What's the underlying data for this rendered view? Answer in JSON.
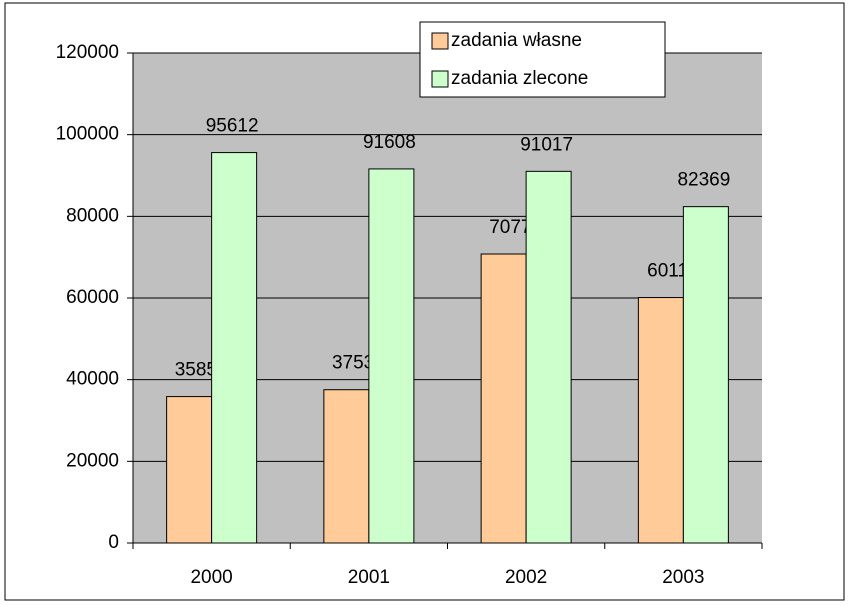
{
  "chart_data": {
    "type": "bar",
    "categories": [
      "2000",
      "2001",
      "2002",
      "2003"
    ],
    "series": [
      {
        "name": "zadania własne",
        "color": "#ffcc99",
        "values": [
          35857,
          37539,
          70773,
          60110
        ]
      },
      {
        "name": "zadania zlecone",
        "color": "#ccffcc",
        "values": [
          95612,
          91608,
          91017,
          82369
        ]
      }
    ],
    "ylim": [
      0,
      120000
    ],
    "yticks": [
      0,
      20000,
      40000,
      60000,
      80000,
      100000,
      120000
    ],
    "grid": true,
    "legend": "top"
  }
}
